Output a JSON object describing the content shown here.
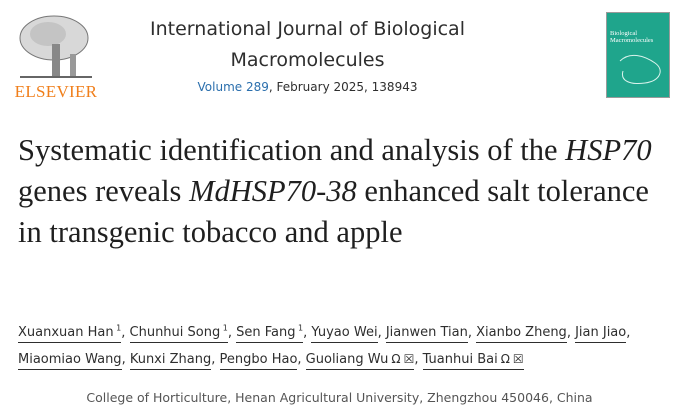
{
  "publisher": {
    "logo_text": "ELSEVIER",
    "brand_color": "#f07f1b"
  },
  "journal": {
    "title": "International Journal of Biological Macromolecules",
    "volume_link": "Volume 289",
    "issue_info": ", February 2025, 138943",
    "cover_text": "Biological Macromolecules",
    "cover_color": "#1fa58c"
  },
  "article": {
    "title_parts": [
      {
        "text": "Systematic identification and analysis of the ",
        "italic": false
      },
      {
        "text": "HSP70",
        "italic": true
      },
      {
        "text": " genes reveals ",
        "italic": false
      },
      {
        "text": "MdHSP70-38",
        "italic": true
      },
      {
        "text": " enhanced salt tolerance in transgenic tobacco and apple",
        "italic": false
      }
    ],
    "authors": [
      {
        "name": "Xuanxuan Han",
        "sup": "1"
      },
      {
        "name": "Chunhui Song",
        "sup": "1"
      },
      {
        "name": "Sen Fang",
        "sup": "1"
      },
      {
        "name": "Yuyao Wei"
      },
      {
        "name": "Jianwen Tian"
      },
      {
        "name": "Xianbo Zheng"
      },
      {
        "name": "Jian Jiao"
      },
      {
        "name": "Miaomiao Wang"
      },
      {
        "name": "Kunxi Zhang"
      },
      {
        "name": "Pengbo Hao"
      },
      {
        "name": "Guoliang Wu",
        "icons": [
          "person-icon",
          "email-icon"
        ]
      },
      {
        "name": "Tuanhui Bai",
        "icons": [
          "person-icon",
          "email-icon"
        ]
      }
    ],
    "affiliation": "College of Horticulture, Henan Agricultural University, Zhengzhou 450046, China"
  }
}
